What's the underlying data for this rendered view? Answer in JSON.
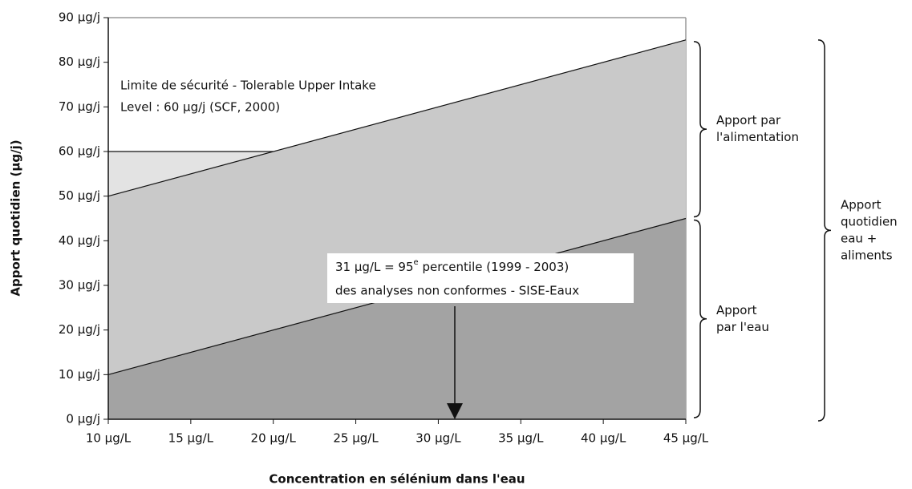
{
  "chart_data": {
    "type": "stacked-area",
    "x_label": "Concentration en sélénium dans l'eau",
    "y_label": "Apport quotidien (µg/j)",
    "x": [
      10,
      45
    ],
    "series": [
      {
        "label": [
          "Apport",
          "par l'eau"
        ],
        "color": "#a3a3a3",
        "values": [
          10,
          45
        ]
      },
      {
        "label": [
          "Apport par",
          "l'alimentation"
        ],
        "color": "#c9c9c9",
        "values": [
          40,
          40
        ]
      }
    ],
    "total_label": [
      "Apport",
      "quotidien",
      "eau +",
      "aliments"
    ],
    "threshold": 60,
    "threshold_color": "#e3e3e3",
    "threshold_label": [
      "Limite de sécurité - Tolerable Upper Intake",
      "Level : 60 µg/j (SCF, 2000)"
    ],
    "arrow_x": 31,
    "arrow_label": {
      "line1_start": "31 µg/L = 95",
      "line1_sup": "e",
      "line1_end": " percentile (1999 - 2003)",
      "line2": "des analyses non conformes - SISE-Eaux"
    },
    "xlim": [
      10,
      45
    ],
    "xticks": [
      {
        "value": 10,
        "label": "10 µg/L"
      },
      {
        "value": 15,
        "label": "15 µg/L"
      },
      {
        "value": 20,
        "label": "20 µg/L"
      },
      {
        "value": 25,
        "label": "25 µg/L"
      },
      {
        "value": 30,
        "label": "30 µg/L"
      },
      {
        "value": 35,
        "label": "35 µg/L"
      },
      {
        "value": 40,
        "label": "40 µg/L"
      },
      {
        "value": 45,
        "label": "45 µg/L"
      }
    ],
    "ylim": [
      0,
      90
    ],
    "yticks": [
      {
        "value": 0,
        "label": "0 µg/j"
      },
      {
        "value": 10,
        "label": "10 µg/j"
      },
      {
        "value": 20,
        "label": "20 µg/j"
      },
      {
        "value": 30,
        "label": "30 µg/j"
      },
      {
        "value": 40,
        "label": "40 µg/j"
      },
      {
        "value": 50,
        "label": "50 µg/j"
      },
      {
        "value": 60,
        "label": "60 µg/j"
      },
      {
        "value": 70,
        "label": "70 µg/j"
      },
      {
        "value": 80,
        "label": "80 µg/j"
      },
      {
        "value": 90,
        "label": "90 µg/j"
      }
    ]
  }
}
